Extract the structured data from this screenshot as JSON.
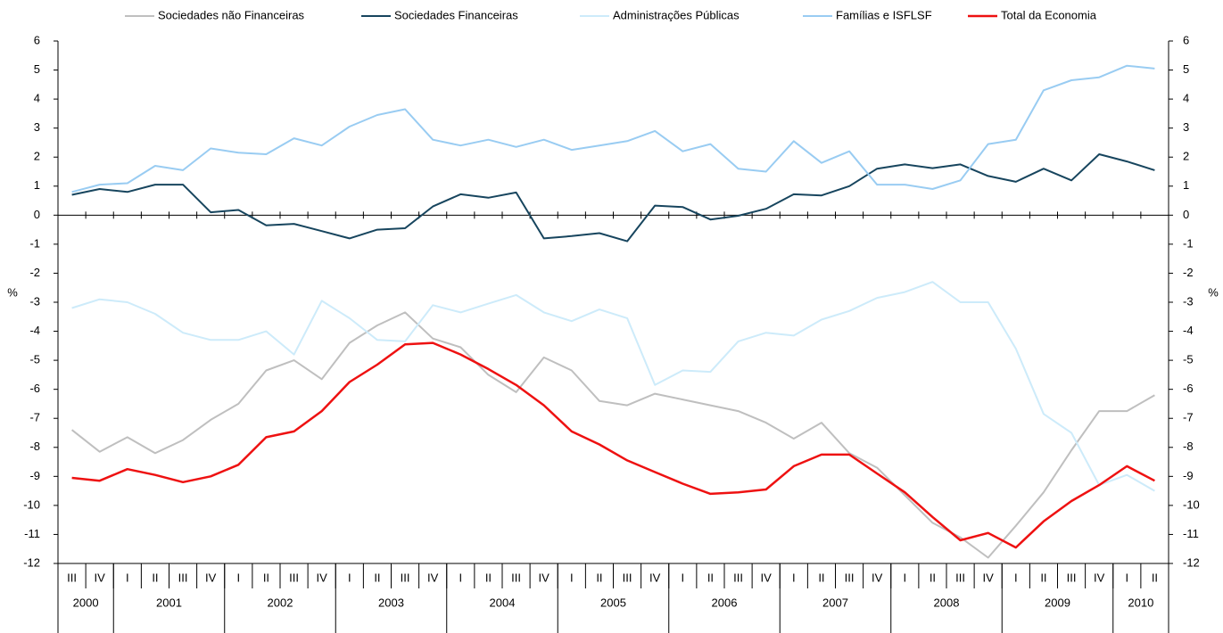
{
  "chart_data": {
    "type": "line",
    "categories": [
      "III",
      "IV",
      "I",
      "II",
      "III",
      "IV",
      "I",
      "II",
      "III",
      "IV",
      "I",
      "II",
      "III",
      "IV",
      "I",
      "II",
      "III",
      "IV",
      "I",
      "II",
      "III",
      "IV",
      "I",
      "II",
      "III",
      "IV",
      "I",
      "II",
      "III",
      "IV",
      "I",
      "II",
      "III",
      "IV",
      "I",
      "II",
      "III",
      "IV",
      "I",
      "II"
    ],
    "years": [
      "2000",
      "2001",
      "2002",
      "2003",
      "2004",
      "2005",
      "2006",
      "2007",
      "2008",
      "2009",
      "2010"
    ],
    "ylabel": "%",
    "y2label": "%",
    "ylim": [
      -12,
      6
    ],
    "yticks": [
      -12,
      -11,
      -10,
      -9,
      -8,
      -7,
      -6,
      -5,
      -4,
      -3,
      -2,
      -1,
      0,
      1,
      2,
      3,
      4,
      5,
      6
    ],
    "y2lim": [
      -12,
      6
    ],
    "y2ticks": [
      -12,
      -11,
      -10,
      -9,
      -8,
      -7,
      -6,
      -5,
      -4,
      -3,
      -2,
      -1,
      0,
      1,
      2,
      3,
      4,
      5,
      6
    ],
    "series": [
      {
        "name": "Sociedades não Financeiras",
        "color": "#bfbfbf",
        "values": [
          -7.4,
          -8.15,
          -7.65,
          -8.2,
          -7.75,
          -7.05,
          -6.5,
          -5.35,
          -5.0,
          -5.65,
          -4.4,
          -3.8,
          -3.35,
          -4.25,
          -4.55,
          -5.5,
          -6.1,
          -4.9,
          -5.35,
          -6.4,
          -6.55,
          -6.15,
          -6.35,
          -6.55,
          -6.75,
          -7.15,
          -7.7,
          -7.15,
          -8.2,
          -8.7,
          -9.65,
          -10.6,
          -11.1,
          -11.8,
          -10.7,
          -9.55,
          -8.1,
          -6.75,
          -6.75,
          -6.2
        ]
      },
      {
        "name": "Sociedades Financeiras",
        "color": "#17455e",
        "values": [
          0.7,
          0.9,
          0.8,
          1.05,
          1.05,
          0.1,
          0.18,
          -0.35,
          -0.3,
          -0.55,
          -0.8,
          -0.5,
          -0.45,
          0.3,
          0.72,
          0.6,
          0.78,
          -0.8,
          -0.72,
          -0.62,
          -0.9,
          0.33,
          0.28,
          -0.15,
          -0.02,
          0.22,
          0.72,
          0.68,
          1.0,
          1.6,
          1.75,
          1.62,
          1.75,
          1.35,
          1.15,
          1.6,
          1.2,
          2.1,
          1.85,
          1.55
        ]
      },
      {
        "name": "Administrações Públicas",
        "color": "#cdebfa",
        "values": [
          -3.2,
          -2.9,
          -3.0,
          -3.4,
          -4.05,
          -4.3,
          -4.3,
          -4.0,
          -4.8,
          -2.95,
          -3.55,
          -4.3,
          -4.35,
          -3.1,
          -3.35,
          -3.05,
          -2.75,
          -3.35,
          -3.65,
          -3.25,
          -3.55,
          -5.85,
          -5.35,
          -5.4,
          -4.35,
          -4.05,
          -4.15,
          -3.6,
          -3.3,
          -2.85,
          -2.65,
          -2.3,
          -3.0,
          -3.0,
          -4.6,
          -6.85,
          -7.5,
          -9.3,
          -8.95,
          -9.5
        ]
      },
      {
        "name": "Famílias e ISFLSF",
        "color": "#99ccf2",
        "values": [
          0.8,
          1.05,
          1.1,
          1.7,
          1.55,
          2.3,
          2.15,
          2.1,
          2.65,
          2.4,
          3.05,
          3.45,
          3.65,
          2.6,
          2.4,
          2.6,
          2.35,
          2.6,
          2.25,
          2.4,
          2.55,
          2.9,
          2.2,
          2.45,
          1.6,
          1.5,
          2.55,
          1.8,
          2.2,
          1.05,
          1.05,
          0.9,
          1.2,
          2.45,
          2.6,
          4.3,
          4.65,
          4.75,
          5.15,
          5.05
        ]
      },
      {
        "name": "Total da Economia",
        "color": "#ee1111",
        "values": [
          -9.05,
          -9.15,
          -8.75,
          -8.95,
          -9.2,
          -9.0,
          -8.6,
          -7.65,
          -7.45,
          -6.75,
          -5.75,
          -5.15,
          -4.45,
          -4.4,
          -4.8,
          -5.3,
          -5.85,
          -6.55,
          -7.45,
          -7.9,
          -8.45,
          -8.85,
          -9.25,
          -9.6,
          -9.55,
          -9.45,
          -8.65,
          -8.25,
          -8.25,
          -8.9,
          -9.55,
          -10.4,
          -11.2,
          -10.95,
          -11.45,
          -10.55,
          -9.85,
          -9.3,
          -8.65,
          -9.15
        ]
      }
    ]
  }
}
